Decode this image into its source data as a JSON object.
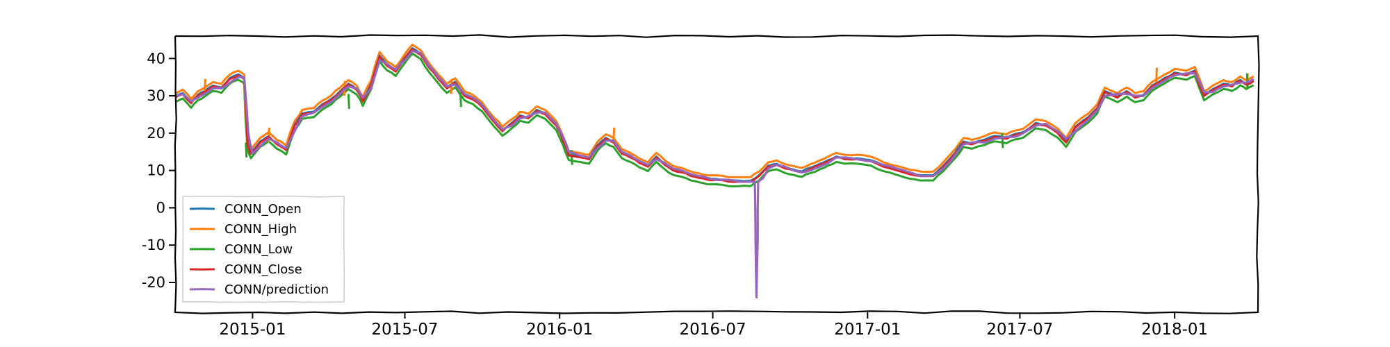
{
  "chart_data": {
    "type": "line",
    "title": "",
    "xlabel": "",
    "ylabel": "",
    "grid": false,
    "legend_position": "lower-left",
    "x_range": [
      "2014-10-01",
      "2018-04-10"
    ],
    "ylim": [
      -28,
      46
    ],
    "x_ticks": [
      "2015-01",
      "2015-07",
      "2016-01",
      "2016-07",
      "2017-01",
      "2017-07",
      "2018-01"
    ],
    "y_ticks": [
      40,
      30,
      20,
      10,
      0,
      -10,
      -20
    ],
    "y_tick_labels": [
      "40",
      "30",
      "20",
      "10",
      "0",
      "-10",
      "-20"
    ],
    "series": [
      {
        "name": "CONN_Open",
        "color": "#1f77b4"
      },
      {
        "name": "CONN_High",
        "color": "#ff7f0e"
      },
      {
        "name": "CONN_Low",
        "color": "#2ca02c"
      },
      {
        "name": "CONN_Close",
        "color": "#d62728"
      },
      {
        "name": "CONN/prediction",
        "color": "#9467bd"
      }
    ],
    "close_points": [
      [
        "2014-10-01",
        29.5
      ],
      [
        "2014-10-10",
        30.5
      ],
      [
        "2014-10-20",
        28.0
      ],
      [
        "2014-10-28",
        30.0
      ],
      [
        "2014-11-05",
        31.0
      ],
      [
        "2014-11-15",
        32.5
      ],
      [
        "2014-11-25",
        32.0
      ],
      [
        "2014-12-05",
        34.5
      ],
      [
        "2014-12-15",
        35.5
      ],
      [
        "2014-12-22",
        34.5
      ],
      [
        "2014-12-26",
        17.0
      ],
      [
        "2014-12-30",
        14.5
      ],
      [
        "2015-01-10",
        17.5
      ],
      [
        "2015-01-20",
        19.0
      ],
      [
        "2015-01-30",
        17.0
      ],
      [
        "2015-02-10",
        15.5
      ],
      [
        "2015-02-20",
        22.0
      ],
      [
        "2015-03-01",
        25.0
      ],
      [
        "2015-03-15",
        25.5
      ],
      [
        "2015-03-25",
        27.5
      ],
      [
        "2015-04-05",
        29.0
      ],
      [
        "2015-04-15",
        31.0
      ],
      [
        "2015-04-25",
        33.0
      ],
      [
        "2015-05-05",
        31.5
      ],
      [
        "2015-05-12",
        28.5
      ],
      [
        "2015-05-22",
        33.0
      ],
      [
        "2015-06-01",
        40.5
      ],
      [
        "2015-06-10",
        38.0
      ],
      [
        "2015-06-20",
        36.5
      ],
      [
        "2015-07-01",
        40.0
      ],
      [
        "2015-07-10",
        42.5
      ],
      [
        "2015-07-20",
        41.0
      ],
      [
        "2015-07-30",
        37.5
      ],
      [
        "2015-08-10",
        34.5
      ],
      [
        "2015-08-20",
        32.0
      ],
      [
        "2015-08-30",
        33.5
      ],
      [
        "2015-09-10",
        30.0
      ],
      [
        "2015-09-20",
        29.0
      ],
      [
        "2015-10-01",
        27.0
      ],
      [
        "2015-10-15",
        23.0
      ],
      [
        "2015-10-25",
        20.5
      ],
      [
        "2015-11-05",
        22.5
      ],
      [
        "2015-11-15",
        24.5
      ],
      [
        "2015-11-25",
        24.0
      ],
      [
        "2015-12-05",
        26.0
      ],
      [
        "2015-12-15",
        25.0
      ],
      [
        "2015-12-28",
        22.0
      ],
      [
        "2016-01-05",
        18.0
      ],
      [
        "2016-01-12",
        14.0
      ],
      [
        "2016-01-25",
        13.5
      ],
      [
        "2016-02-05",
        13.0
      ],
      [
        "2016-02-15",
        16.5
      ],
      [
        "2016-02-25",
        18.5
      ],
      [
        "2016-03-05",
        17.5
      ],
      [
        "2016-03-15",
        14.5
      ],
      [
        "2016-03-25",
        13.5
      ],
      [
        "2016-04-05",
        12.0
      ],
      [
        "2016-04-15",
        11.0
      ],
      [
        "2016-04-25",
        13.5
      ],
      [
        "2016-05-05",
        11.5
      ],
      [
        "2016-05-15",
        10.0
      ],
      [
        "2016-05-25",
        9.5
      ],
      [
        "2016-06-05",
        8.5
      ],
      [
        "2016-06-15",
        8.0
      ],
      [
        "2016-06-25",
        7.5
      ],
      [
        "2016-07-05",
        7.5
      ],
      [
        "2016-07-20",
        7.0
      ],
      [
        "2016-08-01",
        7.0
      ],
      [
        "2016-08-15",
        7.0
      ],
      [
        "2016-08-25",
        8.5
      ],
      [
        "2016-09-05",
        11.0
      ],
      [
        "2016-09-15",
        11.5
      ],
      [
        "2016-09-25",
        10.5
      ],
      [
        "2016-10-05",
        10.0
      ],
      [
        "2016-10-15",
        9.5
      ],
      [
        "2016-10-25",
        10.5
      ],
      [
        "2016-11-05",
        11.5
      ],
      [
        "2016-11-15",
        12.5
      ],
      [
        "2016-11-25",
        13.5
      ],
      [
        "2016-12-05",
        13.0
      ],
      [
        "2016-12-20",
        13.0
      ],
      [
        "2017-01-05",
        12.5
      ],
      [
        "2017-01-20",
        11.0
      ],
      [
        "2017-02-05",
        10.0
      ],
      [
        "2017-02-20",
        9.0
      ],
      [
        "2017-03-05",
        8.5
      ],
      [
        "2017-03-20",
        8.5
      ],
      [
        "2017-04-01",
        11.0
      ],
      [
        "2017-04-15",
        14.5
      ],
      [
        "2017-04-25",
        17.5
      ],
      [
        "2017-05-05",
        17.0
      ],
      [
        "2017-05-20",
        18.0
      ],
      [
        "2017-06-01",
        19.0
      ],
      [
        "2017-06-15",
        18.5
      ],
      [
        "2017-06-25",
        19.5
      ],
      [
        "2017-07-05",
        20.0
      ],
      [
        "2017-07-20",
        22.5
      ],
      [
        "2017-08-01",
        22.0
      ],
      [
        "2017-08-15",
        20.0
      ],
      [
        "2017-08-25",
        17.5
      ],
      [
        "2017-09-05",
        21.5
      ],
      [
        "2017-09-20",
        24.0
      ],
      [
        "2017-10-01",
        26.5
      ],
      [
        "2017-10-10",
        31.0
      ],
      [
        "2017-10-25",
        29.5
      ],
      [
        "2017-11-05",
        31.0
      ],
      [
        "2017-11-15",
        29.5
      ],
      [
        "2017-11-25",
        30.0
      ],
      [
        "2017-12-05",
        32.5
      ],
      [
        "2017-12-20",
        34.5
      ],
      [
        "2018-01-01",
        36.0
      ],
      [
        "2018-01-15",
        35.5
      ],
      [
        "2018-01-25",
        36.5
      ],
      [
        "2018-02-05",
        30.0
      ],
      [
        "2018-02-15",
        31.5
      ],
      [
        "2018-02-28",
        33.0
      ],
      [
        "2018-03-10",
        32.5
      ],
      [
        "2018-03-20",
        34.0
      ],
      [
        "2018-03-27",
        33.0
      ],
      [
        "2018-04-05",
        34.0
      ]
    ],
    "prediction_points": [
      [
        "2014-10-01",
        30.0
      ],
      [
        "2014-10-10",
        30.5
      ],
      [
        "2014-10-20",
        28.5
      ],
      [
        "2014-10-28",
        29.5
      ],
      [
        "2014-11-05",
        30.5
      ],
      [
        "2014-11-15",
        32.0
      ],
      [
        "2014-11-25",
        32.0
      ],
      [
        "2014-12-05",
        33.5
      ],
      [
        "2014-12-15",
        35.0
      ],
      [
        "2014-12-22",
        35.0
      ],
      [
        "2014-12-27",
        20.0
      ],
      [
        "2015-01-01",
        14.5
      ],
      [
        "2015-01-10",
        16.5
      ],
      [
        "2015-01-20",
        18.5
      ],
      [
        "2015-01-30",
        17.5
      ],
      [
        "2015-02-10",
        16.0
      ],
      [
        "2015-02-20",
        20.5
      ],
      [
        "2015-03-01",
        24.5
      ],
      [
        "2015-03-15",
        25.5
      ],
      [
        "2015-03-25",
        27.0
      ],
      [
        "2015-04-05",
        28.5
      ],
      [
        "2015-04-15",
        30.5
      ],
      [
        "2015-04-25",
        32.5
      ],
      [
        "2015-05-05",
        32.0
      ],
      [
        "2015-05-12",
        29.5
      ],
      [
        "2015-05-22",
        32.0
      ],
      [
        "2015-06-01",
        39.5
      ],
      [
        "2015-06-10",
        38.5
      ],
      [
        "2015-06-20",
        37.0
      ],
      [
        "2015-07-01",
        39.5
      ],
      [
        "2015-07-10",
        42.0
      ],
      [
        "2015-07-20",
        41.5
      ],
      [
        "2015-07-30",
        38.0
      ],
      [
        "2015-08-10",
        35.0
      ],
      [
        "2015-08-20",
        32.5
      ],
      [
        "2015-08-30",
        33.0
      ],
      [
        "2015-09-10",
        30.5
      ],
      [
        "2015-09-20",
        29.5
      ],
      [
        "2015-10-01",
        27.5
      ],
      [
        "2015-10-15",
        23.5
      ],
      [
        "2015-10-25",
        21.0
      ],
      [
        "2015-11-05",
        22.0
      ],
      [
        "2015-11-15",
        24.0
      ],
      [
        "2015-11-25",
        24.5
      ],
      [
        "2015-12-05",
        25.5
      ],
      [
        "2015-12-15",
        25.5
      ],
      [
        "2015-12-28",
        22.5
      ],
      [
        "2016-01-05",
        19.0
      ],
      [
        "2016-01-12",
        15.0
      ],
      [
        "2016-01-25",
        14.0
      ],
      [
        "2016-02-05",
        13.5
      ],
      [
        "2016-02-15",
        16.0
      ],
      [
        "2016-02-25",
        18.0
      ],
      [
        "2016-03-05",
        18.0
      ],
      [
        "2016-03-15",
        15.0
      ],
      [
        "2016-03-25",
        14.0
      ],
      [
        "2016-04-05",
        12.5
      ],
      [
        "2016-04-15",
        11.5
      ],
      [
        "2016-04-25",
        13.0
      ],
      [
        "2016-05-05",
        12.0
      ],
      [
        "2016-05-15",
        10.5
      ],
      [
        "2016-05-25",
        10.0
      ],
      [
        "2016-06-05",
        9.0
      ],
      [
        "2016-06-15",
        8.5
      ],
      [
        "2016-06-25",
        8.0
      ],
      [
        "2016-07-05",
        7.5
      ],
      [
        "2016-07-20",
        7.5
      ],
      [
        "2016-08-01",
        7.0
      ],
      [
        "2016-08-20",
        7.0
      ],
      [
        "2016-08-22",
        -24.0
      ],
      [
        "2016-08-24",
        7.0
      ],
      [
        "2016-08-30",
        8.0
      ],
      [
        "2016-09-05",
        10.5
      ],
      [
        "2016-09-15",
        11.5
      ],
      [
        "2016-09-25",
        11.0
      ],
      [
        "2016-10-05",
        10.0
      ],
      [
        "2016-10-15",
        9.5
      ],
      [
        "2016-10-25",
        10.0
      ],
      [
        "2016-11-05",
        11.0
      ],
      [
        "2016-11-15",
        12.0
      ],
      [
        "2016-11-25",
        13.5
      ],
      [
        "2016-12-05",
        13.5
      ],
      [
        "2016-12-20",
        13.0
      ],
      [
        "2017-01-05",
        12.5
      ],
      [
        "2017-01-20",
        11.5
      ],
      [
        "2017-02-05",
        10.5
      ],
      [
        "2017-02-20",
        9.5
      ],
      [
        "2017-03-05",
        8.5
      ],
      [
        "2017-03-20",
        8.5
      ],
      [
        "2017-04-01",
        10.5
      ],
      [
        "2017-04-15",
        14.0
      ],
      [
        "2017-04-25",
        17.0
      ],
      [
        "2017-05-05",
        17.5
      ],
      [
        "2017-05-20",
        17.5
      ],
      [
        "2017-06-01",
        18.5
      ],
      [
        "2017-06-15",
        19.0
      ],
      [
        "2017-06-25",
        19.0
      ],
      [
        "2017-07-05",
        20.0
      ],
      [
        "2017-07-20",
        22.0
      ],
      [
        "2017-08-01",
        22.5
      ],
      [
        "2017-08-15",
        20.5
      ],
      [
        "2017-08-25",
        18.5
      ],
      [
        "2017-09-05",
        20.5
      ],
      [
        "2017-09-20",
        23.5
      ],
      [
        "2017-10-01",
        26.0
      ],
      [
        "2017-10-10",
        30.0
      ],
      [
        "2017-10-25",
        30.5
      ],
      [
        "2017-11-05",
        30.5
      ],
      [
        "2017-11-15",
        30.0
      ],
      [
        "2017-11-25",
        30.0
      ],
      [
        "2017-12-05",
        32.0
      ],
      [
        "2017-12-20",
        34.0
      ],
      [
        "2018-01-01",
        35.5
      ],
      [
        "2018-01-15",
        36.0
      ],
      [
        "2018-01-25",
        36.0
      ],
      [
        "2018-02-05",
        31.0
      ],
      [
        "2018-02-15",
        31.0
      ],
      [
        "2018-02-28",
        32.5
      ],
      [
        "2018-03-10",
        33.0
      ],
      [
        "2018-03-20",
        33.5
      ],
      [
        "2018-03-27",
        33.5
      ],
      [
        "2018-04-05",
        34.5
      ]
    ],
    "open_offset": 0.3,
    "high_offset": 1.2,
    "low_offset": -1.2,
    "high_spikes": [
      [
        "2014-11-05",
        34.5
      ],
      [
        "2015-01-20",
        21.5
      ],
      [
        "2015-04-20",
        34.0
      ],
      [
        "2015-08-25",
        34.5
      ],
      [
        "2016-03-05",
        21.5
      ],
      [
        "2017-12-10",
        37.5
      ],
      [
        "2018-03-28",
        36.0
      ]
    ],
    "low_spikes": [
      [
        "2014-12-24",
        13.5
      ],
      [
        "2015-04-25",
        26.5
      ],
      [
        "2015-09-05",
        27.0
      ],
      [
        "2016-01-15",
        11.5
      ],
      [
        "2017-06-10",
        16.0
      ],
      [
        "2018-03-28",
        32.0
      ]
    ]
  }
}
